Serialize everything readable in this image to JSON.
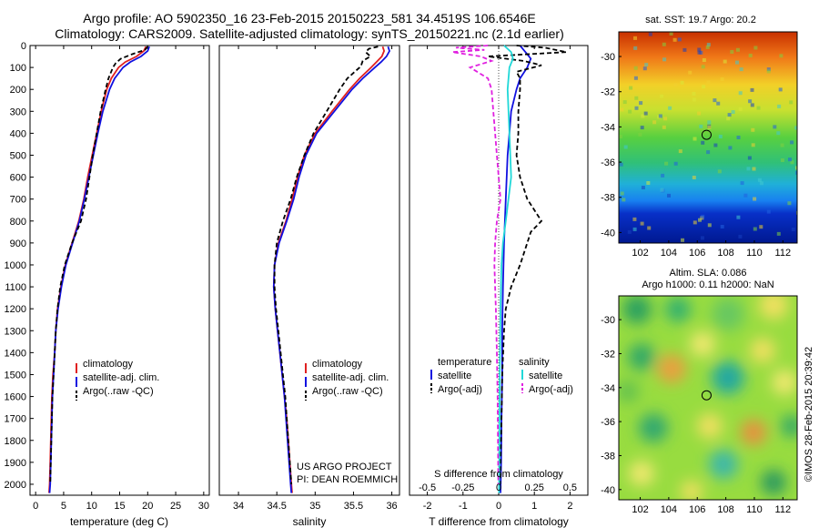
{
  "header": {
    "title_line1": "Argo profile: AO 5902350_16 23-Feb-2015 20150223_581 34.4519S 106.6546E",
    "title_line2": "Climatology: CARS2009. Satellite-adjusted climatology: synTS_20150221.nc (2.1d earlier)"
  },
  "colors": {
    "climatology": "#e02020",
    "satellite": "#1010e0",
    "argo": "#000000",
    "sal_satellite": "#20d8d8",
    "sal_argo": "#e020e0"
  },
  "depth_axis": {
    "ylim": [
      0,
      2050
    ],
    "ticks": [
      0,
      100,
      200,
      300,
      400,
      500,
      600,
      700,
      800,
      900,
      1000,
      1100,
      1200,
      1300,
      1400,
      1500,
      1600,
      1700,
      1800,
      1900,
      2000
    ]
  },
  "chart_data": [
    {
      "type": "line",
      "name": "temperature-profile",
      "xlabel": "temperature (deg C)",
      "xlim": [
        -1,
        31
      ],
      "xticks": [
        0,
        5,
        10,
        15,
        20,
        25,
        30
      ],
      "legend": [
        "climatology",
        "satellite-adj. clim.",
        "Argo(..raw -QC)"
      ],
      "series": [
        {
          "name": "climatology",
          "role": "climatology",
          "dash": "",
          "depth": [
            5,
            25,
            50,
            75,
            100,
            150,
            200,
            300,
            400,
            500,
            600,
            700,
            800,
            900,
            1000,
            1100,
            1200,
            1300,
            1400,
            1500,
            1600,
            1700,
            1800,
            1900,
            2000,
            2040
          ],
          "values": [
            19.7,
            19.3,
            18.0,
            16.0,
            14.8,
            13.5,
            12.7,
            11.7,
            10.9,
            10.1,
            9.3,
            8.6,
            7.7,
            6.5,
            5.3,
            4.5,
            3.9,
            3.6,
            3.4,
            3.1,
            2.9,
            2.8,
            2.7,
            2.6,
            2.5,
            2.4
          ]
        },
        {
          "name": "satellite-adj. clim.",
          "role": "satellite",
          "dash": "",
          "depth": [
            5,
            25,
            50,
            75,
            100,
            150,
            200,
            300,
            400,
            500,
            600,
            700,
            800,
            900,
            1000,
            1100,
            1200,
            1300,
            1400,
            1500,
            1600,
            1700,
            1800,
            1900,
            2000,
            2040
          ],
          "values": [
            20.3,
            20.0,
            18.8,
            16.9,
            15.6,
            14.1,
            13.2,
            12.0,
            11.1,
            10.3,
            9.5,
            8.7,
            7.8,
            6.6,
            5.4,
            4.6,
            4.0,
            3.6,
            3.4,
            3.2,
            3.0,
            2.9,
            2.8,
            2.7,
            2.6,
            2.5
          ]
        },
        {
          "name": "Argo(..raw -QC)",
          "role": "argo",
          "dash": "5,3",
          "depth": [
            5,
            20,
            40,
            60,
            80,
            100,
            150,
            200,
            300,
            400,
            500,
            600,
            700,
            800,
            850,
            900,
            1000,
            1100,
            1200,
            1300,
            1400,
            1500,
            1600,
            1700,
            1800,
            1900,
            2000
          ],
          "values": [
            20.0,
            19.5,
            17.2,
            15.2,
            14.3,
            13.8,
            13.0,
            12.5,
            11.6,
            10.9,
            10.2,
            9.6,
            9.0,
            8.1,
            7.3,
            6.5,
            5.2,
            4.4,
            3.9,
            3.6,
            3.4,
            3.2,
            3.0,
            2.9,
            2.8,
            2.7,
            2.6
          ]
        }
      ]
    },
    {
      "type": "line",
      "name": "salinity-profile",
      "xlabel": "salinity",
      "xlim": [
        33.75,
        36.1
      ],
      "xticks": [
        34,
        34.5,
        35,
        35.5,
        36
      ],
      "tick_labels": [
        "34",
        "34.5",
        "35",
        "35.5",
        "36"
      ],
      "legend": [
        "climatology",
        "satellite-adj. clim.",
        "Argo(..raw -QC)"
      ],
      "annotation_line1": "US ARGO PROJECT",
      "annotation_line2": "PI: DEAN ROEMMICH",
      "series": [
        {
          "name": "climatology",
          "role": "climatology",
          "dash": "",
          "depth": [
            5,
            25,
            50,
            75,
            100,
            150,
            200,
            300,
            400,
            500,
            600,
            700,
            800,
            900,
            1000,
            1100,
            1200,
            1300,
            1400,
            1500,
            1600,
            1700,
            1800,
            1900,
            2000,
            2040
          ],
          "values": [
            35.88,
            35.9,
            35.87,
            35.8,
            35.73,
            35.58,
            35.45,
            35.22,
            35.0,
            34.86,
            34.77,
            34.7,
            34.62,
            34.52,
            34.47,
            34.46,
            34.48,
            34.51,
            34.54,
            34.57,
            34.6,
            34.63,
            34.65,
            34.67,
            34.69,
            34.7
          ]
        },
        {
          "name": "satellite-adj. clim.",
          "role": "satellite",
          "dash": "",
          "depth": [
            5,
            25,
            50,
            75,
            100,
            150,
            200,
            300,
            400,
            500,
            600,
            700,
            800,
            900,
            1000,
            1100,
            1200,
            1300,
            1400,
            1500,
            1600,
            1700,
            1800,
            1900,
            2000,
            2040
          ],
          "values": [
            35.95,
            35.97,
            35.93,
            35.86,
            35.78,
            35.62,
            35.48,
            35.25,
            35.02,
            34.88,
            34.79,
            34.72,
            34.63,
            34.53,
            34.47,
            34.46,
            34.48,
            34.51,
            34.54,
            34.57,
            34.6,
            34.62,
            34.64,
            34.66,
            34.68,
            34.69
          ]
        },
        {
          "name": "Argo(..raw -QC)",
          "role": "argo",
          "dash": "5,3",
          "depth": [
            5,
            15,
            30,
            50,
            70,
            90,
            100,
            150,
            200,
            300,
            400,
            500,
            600,
            700,
            800,
            900,
            1000,
            1100,
            1200,
            1300,
            1400,
            1500,
            1600,
            1700,
            1800,
            1900,
            2000
          ],
          "values": [
            35.82,
            35.7,
            35.66,
            35.72,
            35.62,
            35.6,
            35.58,
            35.42,
            35.32,
            35.15,
            34.98,
            34.86,
            34.76,
            34.68,
            34.58,
            34.5,
            34.47,
            34.47,
            34.49,
            34.52,
            34.55,
            34.58,
            34.61,
            34.63,
            34.65,
            34.67,
            34.69
          ]
        }
      ]
    },
    {
      "type": "line",
      "name": "difference-profile",
      "xlabel": "T difference from climatology",
      "xlabel_top": "S difference from climatology",
      "xlim": [
        -2.5,
        2.5
      ],
      "xticks": [
        -2,
        -1,
        0,
        1,
        2
      ],
      "s_tick_labels": [
        "-0.5",
        "-0.25",
        "0",
        "0.25",
        "0.5"
      ],
      "s_ticks_t_units": [
        -2,
        -1,
        0,
        1,
        2
      ],
      "legend_left_title": "temperature",
      "legend_right_title": "salinity",
      "legend_left": [
        "satellite",
        "Argo(-adj)"
      ],
      "legend_right": [
        "satellite",
        "Argo(-adj)"
      ],
      "series": [
        {
          "name": "T satellite",
          "role": "satellite",
          "dash": "",
          "depth": [
            0,
            20,
            40,
            60,
            80,
            100,
            150,
            200,
            300,
            400,
            500,
            700,
            900,
            1100,
            1300,
            1500,
            1700,
            1900,
            2040
          ],
          "values": [
            0.6,
            0.7,
            0.8,
            0.9,
            0.85,
            0.8,
            0.6,
            0.5,
            0.35,
            0.3,
            0.25,
            0.2,
            0.15,
            0.12,
            0.1,
            0.1,
            0.08,
            0.07,
            0.05
          ]
        },
        {
          "name": "T Argo(-adj)",
          "role": "argo",
          "dash": "5,3",
          "depth": [
            0,
            10,
            30,
            50,
            70,
            90,
            120,
            150,
            200,
            300,
            400,
            500,
            600,
            700,
            750,
            800,
            850,
            900,
            1000,
            1100,
            1200,
            1300,
            1500,
            1700,
            1900,
            2000
          ],
          "values": [
            0.5,
            1.3,
            1.9,
            -0.3,
            0.7,
            1.2,
            0.5,
            0.6,
            0.6,
            0.55,
            0.55,
            0.5,
            0.6,
            0.8,
            1.0,
            1.2,
            0.9,
            0.8,
            0.6,
            0.35,
            0.2,
            0.15,
            0.1,
            0.08,
            0.05,
            0.04
          ]
        },
        {
          "name": "S satellite",
          "role": "sal_satellite",
          "dash": "",
          "depth": [
            0,
            30,
            60,
            100,
            200,
            400,
            600,
            800,
            900,
            1000,
            1200,
            1500,
            1800,
            2040
          ],
          "values": [
            0.15,
            0.35,
            0.4,
            0.3,
            0.25,
            0.3,
            0.35,
            0.2,
            0.12,
            0.08,
            0.05,
            0.03,
            0.02,
            0.01
          ]
        },
        {
          "name": "S Argo(-adj)",
          "role": "sal_argo",
          "dash": "5,3",
          "depth": [
            0,
            10,
            20,
            30,
            50,
            70,
            100,
            150,
            200,
            300,
            400,
            500,
            600,
            700,
            800,
            900,
            1000,
            1100,
            1200,
            1400,
            1600,
            1800,
            2000
          ],
          "values": [
            -0.3,
            -1.2,
            -0.4,
            -1.3,
            -0.5,
            -0.2,
            -0.8,
            -0.3,
            -0.2,
            -0.15,
            -0.1,
            -0.05,
            0.0,
            0.05,
            -0.05,
            -0.1,
            -0.12,
            -0.1,
            -0.08,
            -0.05,
            -0.03,
            -0.02,
            -0.01
          ]
        }
      ]
    },
    {
      "type": "heatmap",
      "name": "sst-map",
      "title": "sat. SST: 19.7  Argo: 20.2",
      "xlim": [
        100.5,
        113
      ],
      "ylim": [
        -40.6,
        -28.6
      ],
      "xticks": [
        102,
        104,
        106,
        108,
        110,
        112
      ],
      "yticks": [
        -30,
        -32,
        -34,
        -36,
        -38,
        -40
      ],
      "marker": {
        "lon": 106.65,
        "lat": -34.45
      }
    },
    {
      "type": "heatmap",
      "name": "sla-map",
      "title_line1": "Altim. SLA: 0.086",
      "title_line2": "Argo h1000: 0.11  h2000: NaN",
      "xlim": [
        100.5,
        113
      ],
      "ylim": [
        -40.6,
        -28.6
      ],
      "xticks": [
        102,
        104,
        106,
        108,
        110,
        112
      ],
      "yticks": [
        -30,
        -32,
        -34,
        -36,
        -38,
        -40
      ],
      "marker": {
        "lon": 106.65,
        "lat": -34.45
      }
    }
  ],
  "side_label": "©IMOS 28-Feb-2015 20:39:42"
}
